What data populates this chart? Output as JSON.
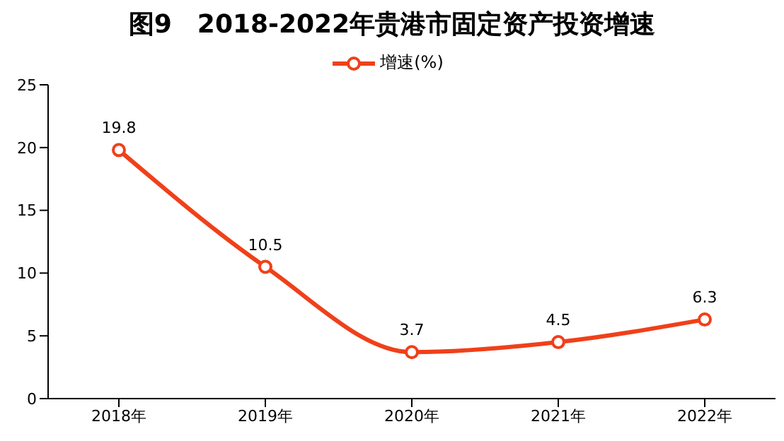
{
  "chart_data": {
    "type": "line",
    "title": "图9　2018-2022年贵港市固定资产投资增速",
    "categories": [
      "2018年",
      "2019年",
      "2020年",
      "2021年",
      "2022年"
    ],
    "series": [
      {
        "name": "增速(%)",
        "color": "#f0401a",
        "values": [
          19.8,
          10.5,
          3.7,
          4.5,
          6.3
        ]
      }
    ],
    "ylim": [
      0,
      25
    ],
    "yticks": [
      0,
      5,
      10,
      15,
      20,
      25
    ],
    "grid": false,
    "legend": "top",
    "marker": "circle",
    "line_style": "solid",
    "data_labels": true
  }
}
